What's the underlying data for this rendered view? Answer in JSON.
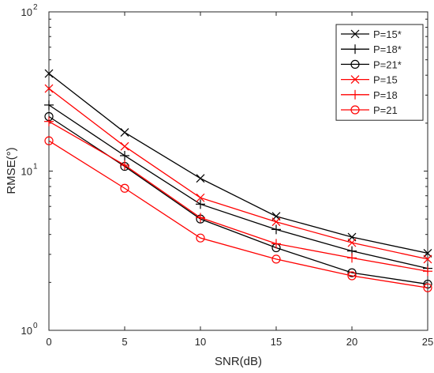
{
  "chart_data": {
    "type": "line",
    "xlabel": "SNR(dB)",
    "ylabel": "RMSE(°)",
    "xlim": [
      0,
      25
    ],
    "ylim": [
      1,
      100
    ],
    "yscale": "log",
    "grid": false,
    "legend_position": "top-right",
    "x": [
      0,
      5,
      10,
      15,
      20,
      25
    ],
    "x_ticks": [
      "0",
      "5",
      "10",
      "15",
      "20",
      "25"
    ],
    "y_ticks": [
      {
        "value": 1,
        "base": "10",
        "exp": "0"
      },
      {
        "value": 10,
        "base": "10",
        "exp": "1"
      },
      {
        "value": 100,
        "base": "10",
        "exp": "2"
      }
    ],
    "series": [
      {
        "name": "P=15*",
        "color": "#000000",
        "marker": "x",
        "values": [
          41,
          17.5,
          9.0,
          5.2,
          3.85,
          3.05
        ]
      },
      {
        "name": "P=18*",
        "color": "#000000",
        "marker": "plus",
        "values": [
          26,
          12.5,
          6.2,
          4.3,
          3.15,
          2.45
        ]
      },
      {
        "name": "P=21*",
        "color": "#000000",
        "marker": "circle",
        "values": [
          22,
          10.7,
          5.0,
          3.3,
          2.3,
          1.95
        ]
      },
      {
        "name": "P=15",
        "color": "#ff0000",
        "marker": "x",
        "values": [
          33,
          14.3,
          6.8,
          4.8,
          3.55,
          2.8
        ]
      },
      {
        "name": "P=18",
        "color": "#ff0000",
        "marker": "plus",
        "values": [
          20.5,
          10.9,
          5.1,
          3.5,
          2.85,
          2.35
        ]
      },
      {
        "name": "P=21",
        "color": "#ff0000",
        "marker": "circle",
        "values": [
          15.5,
          7.8,
          3.8,
          2.8,
          2.2,
          1.85
        ]
      }
    ]
  }
}
